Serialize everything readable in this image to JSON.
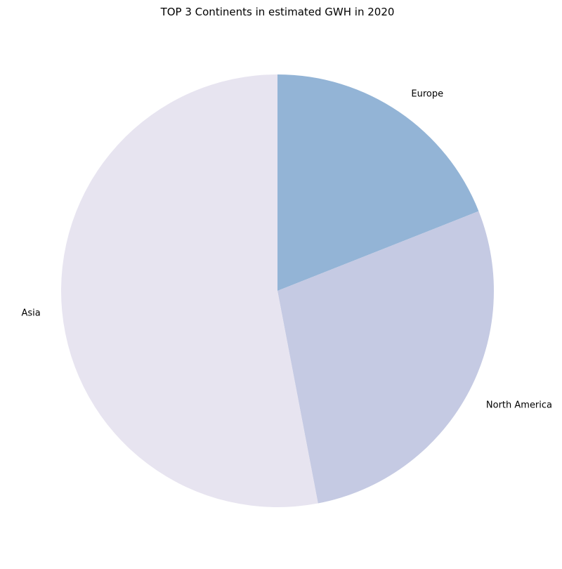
{
  "chart_data": {
    "type": "pie",
    "title": "TOP 3 Continents in estimated GWH in 2020",
    "slices": [
      {
        "label": "Europe",
        "value": 19.0,
        "color": "#93b4d6"
      },
      {
        "label": "North America",
        "value": 28.0,
        "color": "#c5cae3"
      },
      {
        "label": "Asia",
        "value": 53.0,
        "color": "#e7e4f0"
      }
    ],
    "start_angle_deg": 90,
    "direction": "clockwise",
    "legend": "none"
  }
}
